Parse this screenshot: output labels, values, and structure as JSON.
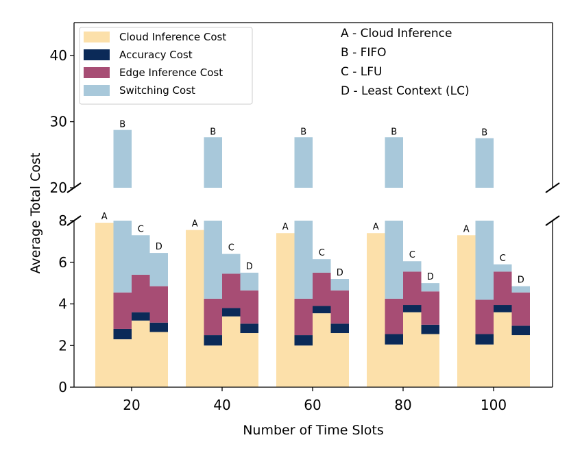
{
  "chart_data": {
    "type": "bar",
    "subtype": "stacked, broken y-axis",
    "xlabel": "Number of Time Slots",
    "ylabel": "Average Total Cost",
    "x_categories": [
      "20",
      "40",
      "60",
      "80",
      "100"
    ],
    "methods": [
      "A",
      "B",
      "C",
      "D"
    ],
    "method_notes": [
      "A - Cloud Inference",
      "B - FIFO",
      "C - LFU",
      "D - Least Context (LC)"
    ],
    "components": [
      "Cloud Inference Cost",
      "Accuracy Cost",
      "Edge Inference Cost",
      "Switching Cost"
    ],
    "colors": {
      "Cloud Inference Cost": "#fce0aa",
      "Accuracy Cost": "#0b2a58",
      "Edge Inference Cost": "#a74d74",
      "Switching Cost": "#a8c8da"
    },
    "upper_axis": {
      "ylim": [
        20,
        45
      ],
      "ticks": [
        "20",
        "30",
        "40"
      ]
    },
    "lower_axis": {
      "ylim": [
        0,
        8
      ],
      "ticks": [
        "0",
        "2",
        "4",
        "6",
        "8"
      ]
    },
    "series": [
      {
        "method": "A",
        "values": {
          "20": {
            "cloud": 7.9,
            "accuracy": 0,
            "edge": 0,
            "switching": 0
          },
          "40": {
            "cloud": 7.55,
            "accuracy": 0,
            "edge": 0,
            "switching": 0
          },
          "60": {
            "cloud": 7.4,
            "accuracy": 0,
            "edge": 0,
            "switching": 0
          },
          "80": {
            "cloud": 7.4,
            "accuracy": 0,
            "edge": 0,
            "switching": 0
          },
          "100": {
            "cloud": 7.3,
            "accuracy": 0,
            "edge": 0,
            "switching": 0
          }
        }
      },
      {
        "method": "B",
        "values": {
          "20": {
            "cloud": 2.3,
            "accuracy": 0.5,
            "edge": 1.75,
            "switching": 24.2
          },
          "40": {
            "cloud": 2.0,
            "accuracy": 0.5,
            "edge": 1.75,
            "switching": 23.4
          },
          "60": {
            "cloud": 2.0,
            "accuracy": 0.5,
            "edge": 1.75,
            "switching": 23.4
          },
          "80": {
            "cloud": 2.05,
            "accuracy": 0.5,
            "edge": 1.7,
            "switching": 23.4
          },
          "100": {
            "cloud": 2.05,
            "accuracy": 0.5,
            "edge": 1.65,
            "switching": 23.3
          }
        }
      },
      {
        "method": "C",
        "values": {
          "20": {
            "cloud": 3.2,
            "accuracy": 0.4,
            "edge": 1.8,
            "switching": 1.9
          },
          "40": {
            "cloud": 3.4,
            "accuracy": 0.4,
            "edge": 1.65,
            "switching": 0.95
          },
          "60": {
            "cloud": 3.55,
            "accuracy": 0.35,
            "edge": 1.6,
            "switching": 0.65
          },
          "80": {
            "cloud": 3.6,
            "accuracy": 0.35,
            "edge": 1.6,
            "switching": 0.5
          },
          "100": {
            "cloud": 3.6,
            "accuracy": 0.35,
            "edge": 1.6,
            "switching": 0.35
          }
        }
      },
      {
        "method": "D",
        "values": {
          "20": {
            "cloud": 2.65,
            "accuracy": 0.45,
            "edge": 1.75,
            "switching": 1.6
          },
          "40": {
            "cloud": 2.6,
            "accuracy": 0.45,
            "edge": 1.6,
            "switching": 0.85
          },
          "60": {
            "cloud": 2.6,
            "accuracy": 0.45,
            "edge": 1.6,
            "switching": 0.55
          },
          "80": {
            "cloud": 2.55,
            "accuracy": 0.45,
            "edge": 1.6,
            "switching": 0.4
          },
          "100": {
            "cloud": 2.5,
            "accuracy": 0.45,
            "edge": 1.6,
            "switching": 0.3
          }
        }
      }
    ],
    "legend": {
      "placement": "top-left",
      "entries": [
        "Cloud Inference Cost",
        "Accuracy Cost",
        "Edge Inference Cost",
        "Switching Cost"
      ]
    }
  }
}
